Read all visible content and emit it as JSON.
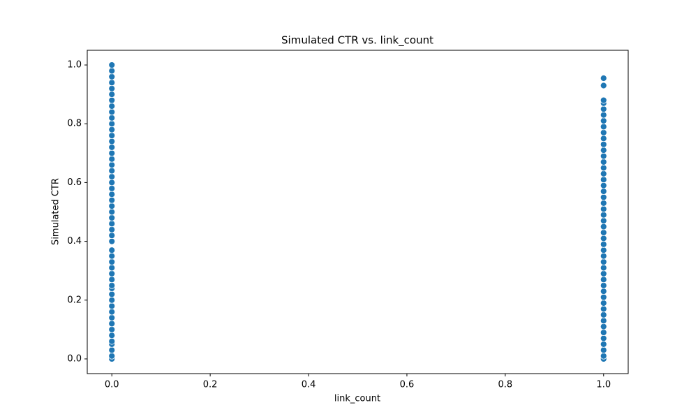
{
  "chart_data": {
    "type": "scatter",
    "title": "Simulated CTR vs. link_count",
    "xlabel": "link_count",
    "ylabel": "Simulated CTR",
    "xlim": [
      -0.05,
      1.05
    ],
    "ylim": [
      -0.05,
      1.05
    ],
    "xticks": [
      {
        "value": 0,
        "label": "0.0"
      },
      {
        "value": 0.2,
        "label": "0.2"
      },
      {
        "value": 0.4,
        "label": "0.4"
      },
      {
        "value": 0.6,
        "label": "0.6"
      },
      {
        "value": 0.8,
        "label": "0.8"
      },
      {
        "value": 1,
        "label": "1.0"
      }
    ],
    "yticks": [
      {
        "value": 0,
        "label": "0.0"
      },
      {
        "value": 0.2,
        "label": "0.2"
      },
      {
        "value": 0.4,
        "label": "0.4"
      },
      {
        "value": 0.6,
        "label": "0.6"
      },
      {
        "value": 0.8,
        "label": "0.8"
      },
      {
        "value": 1,
        "label": "1.0"
      }
    ],
    "grid": false,
    "series": [
      {
        "color": "#1f77b4",
        "x": [
          0,
          0,
          0,
          0,
          0,
          0,
          0,
          0,
          0,
          0,
          0,
          0,
          0,
          0,
          0,
          0,
          0,
          0,
          0,
          0,
          0,
          0,
          0,
          0,
          0,
          0,
          0,
          0,
          0,
          0,
          0,
          0,
          0,
          0,
          0,
          0,
          0,
          0,
          0,
          0,
          0,
          0,
          0,
          0,
          0,
          0,
          0,
          0,
          0,
          0,
          0,
          0,
          1,
          1,
          1,
          1,
          1,
          1,
          1,
          1,
          1,
          1,
          1,
          1,
          1,
          1,
          1,
          1,
          1,
          1,
          1,
          1,
          1,
          1,
          1,
          1,
          1,
          1,
          1,
          1,
          1,
          1,
          1,
          1,
          1,
          1,
          1,
          1,
          1,
          1,
          1,
          1,
          1,
          1,
          1,
          1,
          1,
          1,
          1,
          1
        ],
        "values": [
          0.0,
          0.01,
          0.03,
          0.05,
          0.06,
          0.08,
          0.1,
          0.12,
          0.14,
          0.16,
          0.18,
          0.2,
          0.22,
          0.24,
          0.25,
          0.27,
          0.29,
          0.31,
          0.33,
          0.35,
          0.37,
          0.4,
          0.42,
          0.44,
          0.46,
          0.48,
          0.5,
          0.52,
          0.54,
          0.56,
          0.58,
          0.6,
          0.62,
          0.64,
          0.66,
          0.68,
          0.7,
          0.72,
          0.74,
          0.76,
          0.78,
          0.8,
          0.82,
          0.84,
          0.86,
          0.88,
          0.9,
          0.92,
          0.94,
          0.96,
          0.98,
          1.0,
          0.0,
          0.01,
          0.03,
          0.05,
          0.07,
          0.09,
          0.11,
          0.13,
          0.15,
          0.17,
          0.19,
          0.21,
          0.23,
          0.25,
          0.27,
          0.29,
          0.31,
          0.33,
          0.35,
          0.37,
          0.39,
          0.41,
          0.43,
          0.45,
          0.47,
          0.49,
          0.51,
          0.53,
          0.55,
          0.57,
          0.59,
          0.61,
          0.63,
          0.65,
          0.67,
          0.69,
          0.71,
          0.73,
          0.75,
          0.77,
          0.79,
          0.81,
          0.83,
          0.85,
          0.87,
          0.88,
          0.93,
          0.955
        ]
      }
    ]
  }
}
